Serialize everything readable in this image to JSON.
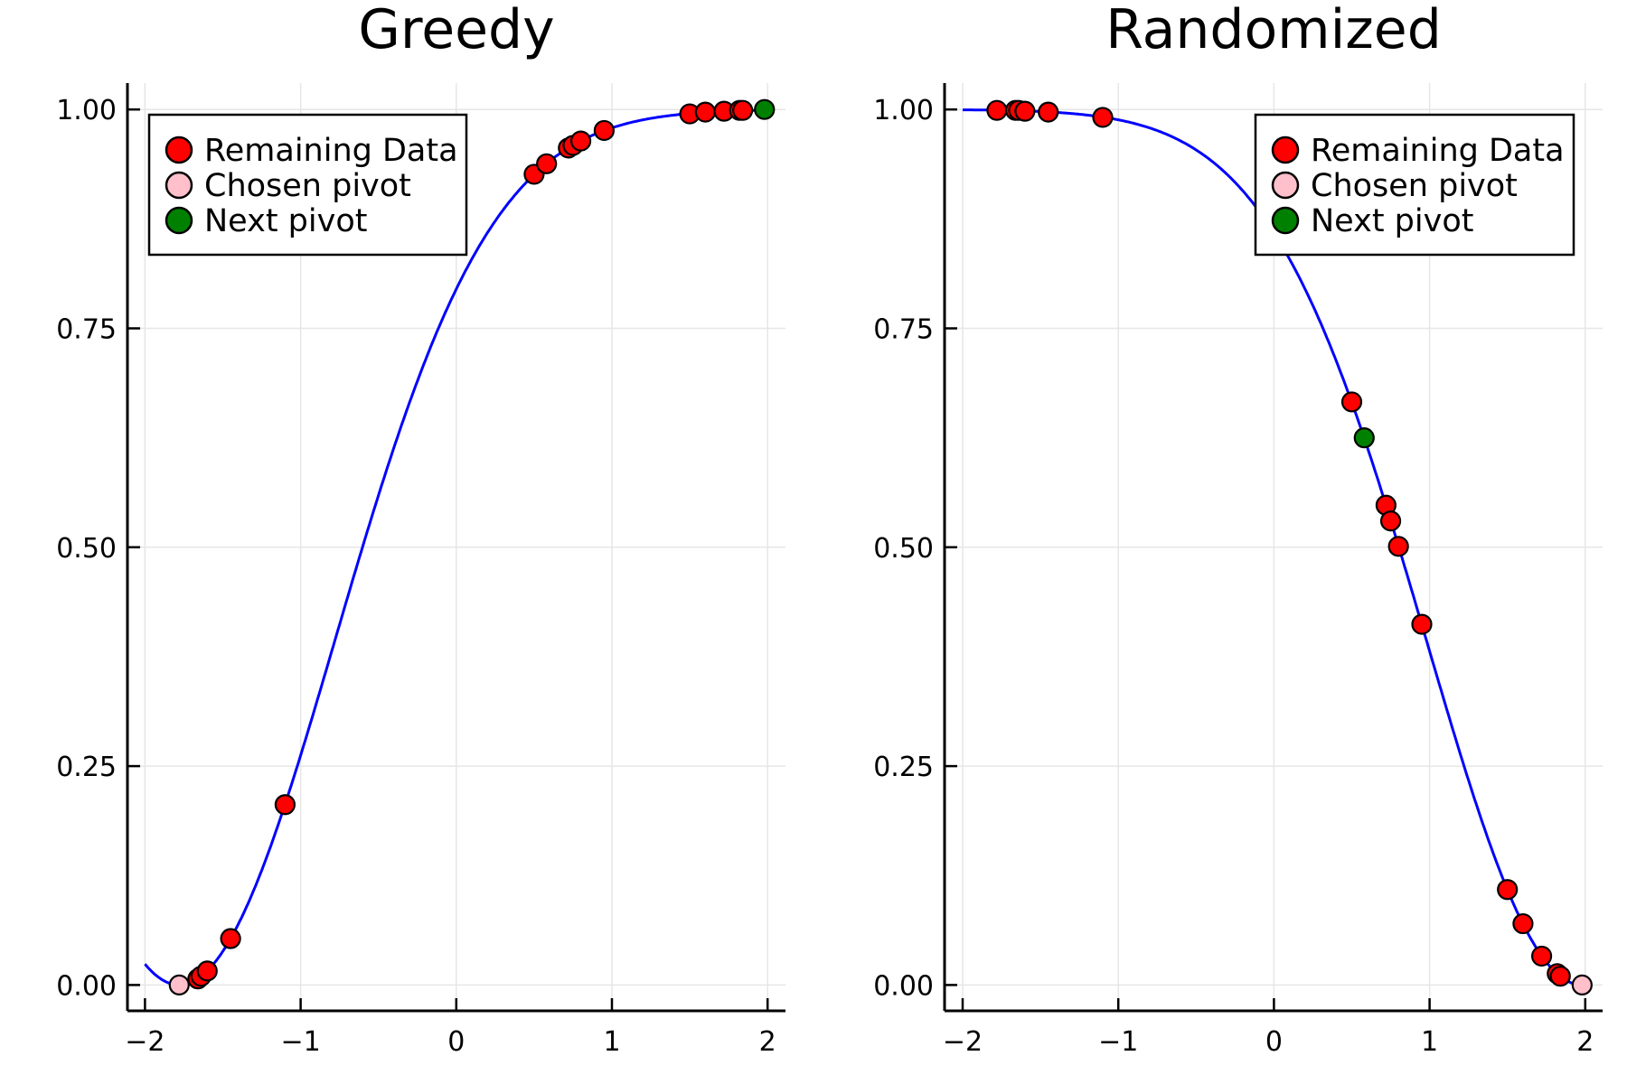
{
  "colors": {
    "curve": "#0000ff",
    "remaining": "#ff0000",
    "chosen": "#ffc0cb",
    "next": "#008000",
    "grid": "#e6e6e6"
  },
  "chart_data": [
    {
      "type": "scatter",
      "title": "Greedy",
      "xlabel": "",
      "ylabel": "",
      "xlim": [
        -2.12,
        2.12
      ],
      "ylim": [
        -0.03,
        1.03
      ],
      "xticks": [
        -2,
        -1,
        0,
        1,
        2
      ],
      "xtick_labels": [
        "−2",
        "−1",
        "0",
        "1",
        "2"
      ],
      "yticks": [
        0,
        0.25,
        0.5,
        0.75,
        1.0
      ],
      "ytick_labels": [
        "0.00",
        "0.25",
        "0.50",
        "0.75",
        "1.00"
      ],
      "grid": true,
      "legend_position": "top-left",
      "legend": [
        "Remaining Data",
        "Chosen pivot",
        "Next pivot"
      ],
      "curve": {
        "formula": "1 - exp(-(x - c)^2 / 2)",
        "center": -1.78,
        "x_range": [
          -2,
          2
        ]
      },
      "remaining": {
        "x": [
          -1.66,
          -1.64,
          -1.6,
          -1.45,
          -1.1,
          0.5,
          0.58,
          0.72,
          0.75,
          0.8,
          0.95,
          1.5,
          1.6,
          1.72,
          1.82,
          1.84
        ],
        "y": [
          0.007,
          0.01,
          0.016,
          0.053,
          0.206,
          0.926,
          0.938,
          0.956,
          0.959,
          0.964,
          0.976,
          0.995,
          0.997,
          0.998,
          0.999,
          0.999
        ]
      },
      "chosen": {
        "x": [
          -1.78
        ],
        "y": [
          0.0
        ]
      },
      "next": {
        "x": [
          1.98
        ],
        "y": [
          1.0
        ]
      }
    },
    {
      "type": "scatter",
      "title": "Randomized",
      "xlabel": "",
      "ylabel": "",
      "xlim": [
        -2.12,
        2.12
      ],
      "ylim": [
        -0.03,
        1.03
      ],
      "xticks": [
        -2,
        -1,
        0,
        1,
        2
      ],
      "xtick_labels": [
        "−2",
        "−1",
        "0",
        "1",
        "2"
      ],
      "yticks": [
        0,
        0.25,
        0.5,
        0.75,
        1.0
      ],
      "ytick_labels": [
        "0.00",
        "0.25",
        "0.50",
        "0.75",
        "1.00"
      ],
      "grid": true,
      "legend_position": "top-right",
      "legend": [
        "Remaining Data",
        "Chosen pivot",
        "Next pivot"
      ],
      "curve": {
        "formula": "1 - exp(-(x - c)^2 / 2)",
        "center": 1.98,
        "x_range": [
          -2,
          2
        ]
      },
      "remaining": {
        "x": [
          -1.78,
          -1.66,
          -1.64,
          -1.6,
          -1.45,
          -1.1,
          0.5,
          0.72,
          0.75,
          0.8,
          0.95,
          1.5,
          1.6,
          1.72,
          1.82,
          1.84
        ],
        "y": [
          0.999,
          0.999,
          0.999,
          0.998,
          0.997,
          0.991,
          0.666,
          0.548,
          0.53,
          0.501,
          0.412,
          0.109,
          0.07,
          0.033,
          0.013,
          0.01
        ]
      },
      "chosen": {
        "x": [
          1.98
        ],
        "y": [
          0.0
        ]
      },
      "next": {
        "x": [
          0.58
        ],
        "y": [
          0.625
        ]
      }
    }
  ]
}
